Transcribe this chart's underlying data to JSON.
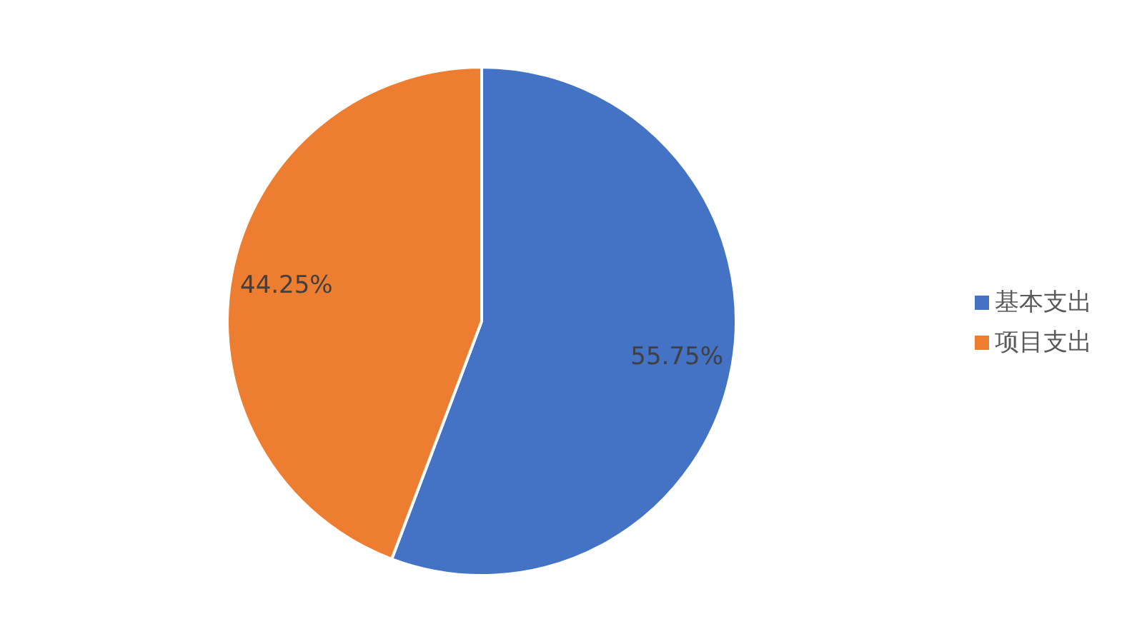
{
  "chart_data": {
    "type": "pie",
    "categories": [
      "基本支出",
      "项目支出"
    ],
    "values": [
      55.75,
      44.25
    ],
    "colors": [
      "#4472c4",
      "#ed7d31"
    ],
    "value_labels": [
      "55.75%",
      "44.25%"
    ],
    "legend": "right"
  }
}
